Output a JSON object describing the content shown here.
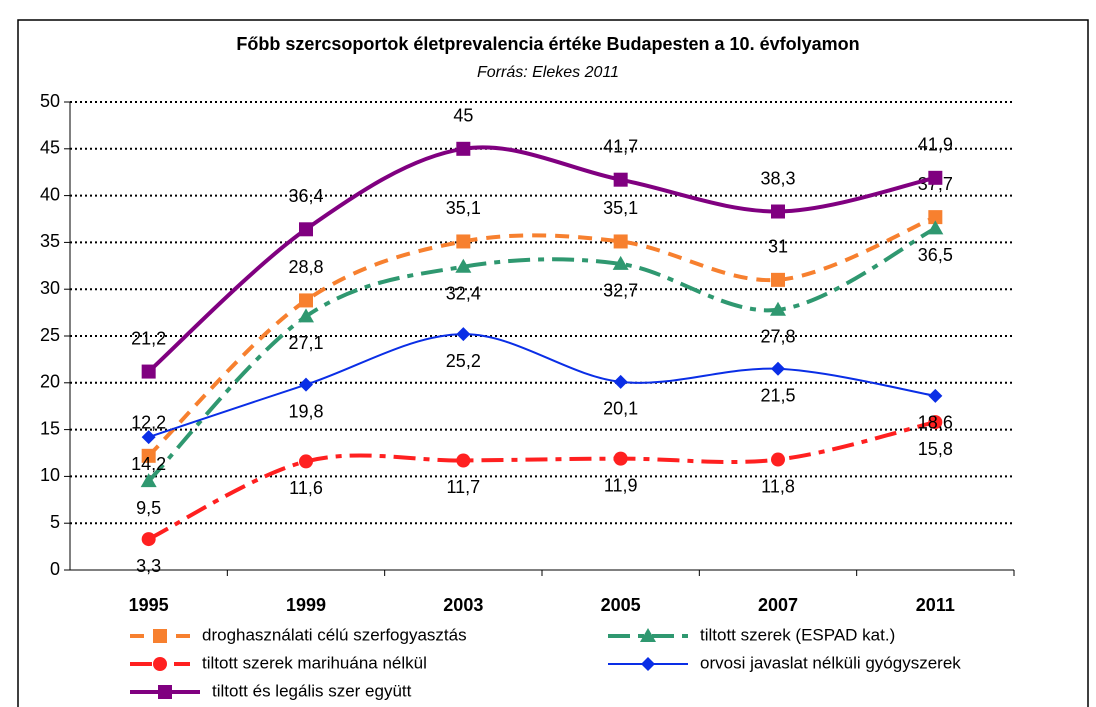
{
  "chart_data": {
    "type": "line",
    "title": "Főbb szercsoportok életprevalencia értéke Budapesten a 10. évfolyamon",
    "subtitle": "Forrás: Elekes 2011",
    "categories": [
      "1995",
      "1999",
      "2003",
      "2005",
      "2007",
      "2011"
    ],
    "ylim": [
      0,
      50
    ],
    "yticks": [
      0,
      5,
      10,
      15,
      20,
      25,
      30,
      35,
      40,
      45,
      50
    ],
    "grid": true,
    "legend": "bottom",
    "smooth": true,
    "series": [
      {
        "name": "droghasználati célú szerfogyasztás",
        "color": "#f7802f",
        "marker": "square",
        "dash": "14 9",
        "width": 4,
        "label_side": "above",
        "values": [
          12.2,
          28.8,
          35.1,
          35.1,
          31,
          37.7
        ],
        "value_labels": [
          "12,2",
          "28,8",
          "35,1",
          "35,1",
          "31",
          "37,7"
        ]
      },
      {
        "name": "tiltott szerek (ESPAD kat.)",
        "color": "#2f9870",
        "marker": "triangle",
        "dash": "22 8 6 8",
        "width": 4,
        "label_side": "below",
        "values": [
          9.5,
          27.1,
          32.4,
          32.7,
          27.8,
          36.5
        ],
        "value_labels": [
          "9,5",
          "27,1",
          "32,4",
          "32,7",
          "27,8",
          "36,5"
        ]
      },
      {
        "name": "tiltott szerek marihuána nélkül",
        "color": "#ff2020",
        "marker": "circle",
        "dash": "22 8 6 8",
        "width": 4,
        "label_side": "below",
        "values": [
          3.3,
          11.6,
          11.7,
          11.9,
          11.8,
          15.8
        ],
        "value_labels": [
          "3,3",
          "11,6",
          "11,7",
          "11,9",
          "11,8",
          "15,8"
        ]
      },
      {
        "name": "orvosi javaslat nélküli gyógyszerek",
        "color": "#0a2ee6",
        "marker": "diamond",
        "dash": "",
        "width": 2,
        "label_side": "below",
        "values": [
          14.2,
          19.8,
          25.2,
          20.1,
          21.5,
          18.6
        ],
        "value_labels": [
          "14,2",
          "19,8",
          "25,2",
          "20,1",
          "21,5",
          "18,6"
        ]
      },
      {
        "name": "tiltott és legális szer együtt",
        "color": "#800080",
        "marker": "square",
        "dash": "",
        "width": 4,
        "label_side": "above",
        "values": [
          21.2,
          36.4,
          45,
          41.7,
          38.3,
          41.9
        ],
        "value_labels": [
          "21,2",
          "36,4",
          "45",
          "41,7",
          "38,3",
          "41,9"
        ]
      }
    ]
  }
}
